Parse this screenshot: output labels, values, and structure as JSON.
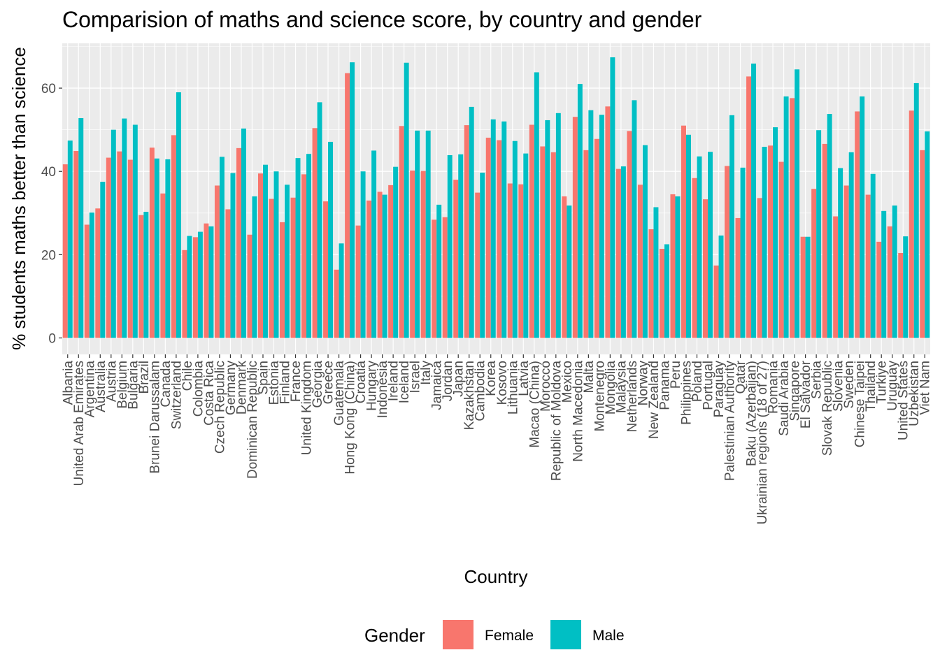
{
  "chart_data": {
    "type": "bar",
    "title": "Comparision of maths and science score, by country and gender",
    "xlabel": "Country",
    "ylabel": "% students maths better than science",
    "ylim": [
      0,
      71
    ],
    "yticks": [
      0,
      20,
      40,
      60
    ],
    "grid": true,
    "legend": {
      "title": "Gender",
      "position": "bottom"
    },
    "colors": {
      "Female": "#F8766D",
      "Male": "#00BFC4",
      "panel": "#EBEBEB",
      "grid": "#FFFFFF"
    },
    "categories": [
      "Albania",
      "United Arab Emirates",
      "Argentina",
      "Australia",
      "Austria",
      "Belgium",
      "Bulgaria",
      "Brazil",
      "Brunei Darussalam",
      "Canada",
      "Switzerland",
      "Chile",
      "Colombia",
      "Costa Rica",
      "Czech Republic",
      "Germany",
      "Denmark",
      "Dominican Republic",
      "Spain",
      "Estonia",
      "Finland",
      "France",
      "United Kingdom",
      "Georgia",
      "Greece",
      "Guatemala",
      "Hong Kong (China)",
      "Croatia",
      "Hungary",
      "Indonesia",
      "Ireland",
      "Iceland",
      "Israel",
      "Italy",
      "Jamaica",
      "Jordan",
      "Japan",
      "Kazakhstan",
      "Cambodia",
      "Korea",
      "Kosovo",
      "Lithuania",
      "Latvia",
      "Macao (China)",
      "Morocco",
      "Republic of Moldova",
      "Mexico",
      "North Macedonia",
      "Malta",
      "Montenegro",
      "Mongolia",
      "Malaysia",
      "Netherlands",
      "Norway",
      "New Zealand",
      "Panama",
      "Peru",
      "Philippines",
      "Poland",
      "Portugal",
      "Paraguay",
      "Palestinian Authority",
      "Qatar",
      "Baku (Azerbaijan)",
      "Ukrainian regions (18 of 27)",
      "Romania",
      "Saudi Arabia",
      "Singapore",
      "El Salvador",
      "Serbia",
      "Slovak Republic",
      "Slovenia",
      "Sweden",
      "Chinese Taipei",
      "Thailand",
      "Turkiye",
      "Uruguay",
      "United States",
      "Uzbekistan",
      "Viet Nam"
    ],
    "series": [
      {
        "name": "Female",
        "values": [
          41.7,
          44.9,
          27.2,
          31.1,
          43.3,
          44.8,
          42.8,
          29.5,
          45.7,
          34.7,
          48.7,
          21.1,
          24.2,
          27.5,
          36.6,
          30.9,
          45.6,
          24.8,
          39.5,
          33.4,
          27.8,
          33.7,
          39.3,
          50.4,
          32.8,
          16.4,
          63.6,
          27.0,
          33.0,
          35.1,
          36.7,
          50.9,
          40.2,
          40.1,
          28.4,
          29.0,
          38.0,
          51.1,
          34.9,
          48.1,
          47.5,
          37.1,
          36.9,
          51.2,
          46.0,
          44.6,
          34.0,
          53.1,
          45.1,
          47.8,
          55.6,
          40.6,
          49.7,
          36.8,
          26.1,
          21.4,
          34.5,
          51.0,
          38.4,
          33.3,
          17.4,
          41.3,
          28.8,
          62.8,
          33.6,
          46.2,
          42.3,
          57.6,
          24.3,
          35.8,
          46.6,
          29.2,
          36.6,
          54.4,
          34.4,
          23.1,
          26.8,
          20.4,
          54.6,
          45.1
        ]
      },
      {
        "name": "Male",
        "values": [
          47.4,
          52.8,
          30.1,
          37.5,
          50.0,
          52.7,
          51.2,
          30.3,
          43.1,
          42.9,
          59.0,
          24.5,
          25.5,
          26.8,
          43.5,
          39.6,
          50.3,
          34.0,
          41.6,
          40.0,
          36.8,
          43.2,
          44.2,
          56.6,
          47.1,
          22.7,
          66.2,
          40.0,
          45.0,
          34.4,
          41.1,
          66.1,
          49.8,
          49.8,
          32.0,
          43.9,
          44.1,
          55.5,
          39.7,
          52.5,
          52.0,
          47.3,
          44.3,
          63.8,
          52.3,
          54.0,
          31.8,
          61.0,
          54.7,
          53.6,
          67.4,
          41.2,
          57.1,
          46.3,
          31.4,
          22.5,
          34.0,
          48.8,
          43.6,
          44.7,
          24.6,
          53.5,
          40.9,
          65.9,
          45.9,
          50.6,
          58.0,
          64.5,
          24.3,
          49.9,
          53.8,
          40.8,
          44.6,
          58.0,
          39.4,
          30.5,
          31.8,
          24.4,
          61.2,
          49.6
        ]
      }
    ]
  }
}
